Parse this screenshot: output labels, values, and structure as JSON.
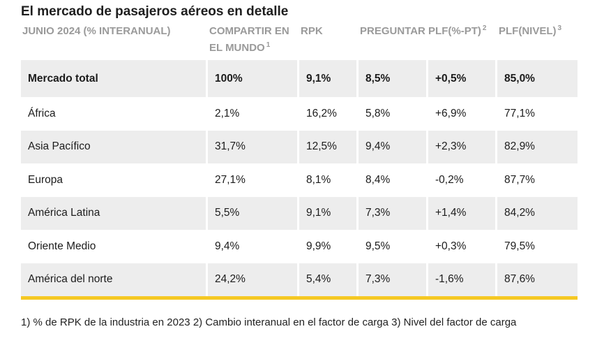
{
  "title": "El mercado de pasajeros aéreos en detalle",
  "headers": [
    {
      "line1": "JUNIO 2024 (% INTERANUAL)",
      "line2": "",
      "sup": ""
    },
    {
      "line1": "COMPARTIR EN",
      "line2": "EL MUNDO",
      "sup": "1"
    },
    {
      "line1": "RPK",
      "line2": "",
      "sup": ""
    },
    {
      "line1": "PREGUNTAR PLF(%-PT)",
      "line2": "",
      "sup": "2"
    },
    {
      "line1": "PLF(NIVEL)",
      "line2": "",
      "sup": "3"
    }
  ],
  "rows": [
    {
      "region": "Mercado total",
      "share": "100%",
      "rpk": "9,1%",
      "ask": "8,5%",
      "plf_change": "+0,5%",
      "plf_level": "85,0%"
    },
    {
      "region": "África",
      "share": "2,1%",
      "rpk": "16,2%",
      "ask": "5,8%",
      "plf_change": "+6,9%",
      "plf_level": "77,1%"
    },
    {
      "region": "Asia Pacífico",
      "share": "31,7%",
      "rpk": "12,5%",
      "ask": "9,4%",
      "plf_change": "+2,3%",
      "plf_level": "82,9%"
    },
    {
      "region": "Europa",
      "share": "27,1%",
      "rpk": "8,1%",
      "ask": "8,4%",
      "plf_change": "-0,2%",
      "plf_level": "87,7%"
    },
    {
      "region": "América Latina",
      "share": "5,5%",
      "rpk": "9,1%",
      "ask": "7,3%",
      "plf_change": "+1,4%",
      "plf_level": "84,2%"
    },
    {
      "region": "Oriente Medio",
      "share": "9,4%",
      "rpk": "9,9%",
      "ask": "9,5%",
      "plf_change": "+0,3%",
      "plf_level": "79,5%"
    },
    {
      "region": "América del norte",
      "share": "24,2%",
      "rpk": "5,4%",
      "ask": "7,3%",
      "plf_change": "-1,6%",
      "plf_level": "87,6%"
    }
  ],
  "footnote": "1) % de RPK de la industria en 2023 2) Cambio interanual en el factor de carga 3) Nivel del factor de carga",
  "colors": {
    "accent_bar": "#f5c823",
    "row_shade": "#ededed",
    "header_text": "#9a9a9a"
  }
}
